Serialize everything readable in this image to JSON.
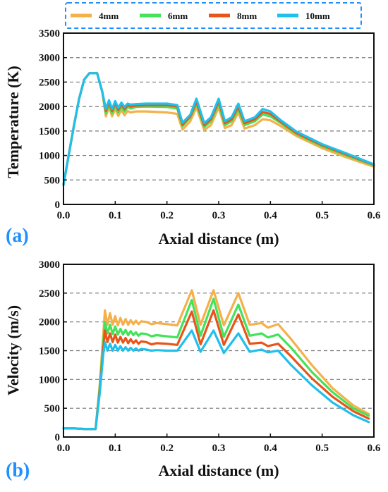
{
  "legend": {
    "placement": "top",
    "entries": [
      {
        "label": "4mm",
        "color": "#f5b04a"
      },
      {
        "label": "6mm",
        "color": "#44e25a"
      },
      {
        "label": "8mm",
        "color": "#e8541a"
      },
      {
        "label": "10mm",
        "color": "#1ec0ec"
      }
    ]
  },
  "chart_data": [
    {
      "type": "line",
      "panel_label": "(a)",
      "panel_label_color": "#1e90ff",
      "xlabel": "Axial distance (m)",
      "ylabel": "Temperature  (K)",
      "xlim": [
        0.0,
        0.6
      ],
      "ylim": [
        0,
        3500
      ],
      "xticks": [
        "0.0",
        "0.1",
        "0.2",
        "0.3",
        "0.4",
        "0.5",
        "0.6"
      ],
      "yticks": [
        "0",
        "500",
        "1000",
        "1500",
        "2000",
        "2500",
        "3000",
        "3500"
      ],
      "grid": "horizontal dashed",
      "series": [
        {
          "name": "4mm",
          "x": [
            0,
            0.01,
            0.02,
            0.03,
            0.04,
            0.05,
            0.065,
            0.075,
            0.082,
            0.088,
            0.094,
            0.1,
            0.106,
            0.112,
            0.118,
            0.124,
            0.13,
            0.14,
            0.16,
            0.2,
            0.22,
            0.23,
            0.245,
            0.257,
            0.272,
            0.285,
            0.3,
            0.312,
            0.325,
            0.338,
            0.35,
            0.37,
            0.385,
            0.4,
            0.42,
            0.45,
            0.5,
            0.55,
            0.6
          ],
          "y": [
            400,
            1000,
            1600,
            2150,
            2550,
            2680,
            2680,
            2300,
            1800,
            1980,
            1800,
            1950,
            1810,
            1930,
            1820,
            1910,
            1880,
            1900,
            1900,
            1880,
            1850,
            1530,
            1700,
            1980,
            1520,
            1620,
            1980,
            1560,
            1620,
            1880,
            1550,
            1620,
            1740,
            1720,
            1600,
            1400,
            1150,
            950,
            770
          ]
        },
        {
          "name": "6mm",
          "x": [
            0,
            0.01,
            0.02,
            0.03,
            0.04,
            0.05,
            0.065,
            0.075,
            0.082,
            0.088,
            0.094,
            0.1,
            0.106,
            0.112,
            0.118,
            0.124,
            0.13,
            0.14,
            0.16,
            0.2,
            0.22,
            0.23,
            0.245,
            0.257,
            0.272,
            0.285,
            0.3,
            0.312,
            0.325,
            0.338,
            0.35,
            0.37,
            0.385,
            0.4,
            0.42,
            0.45,
            0.5,
            0.55,
            0.6
          ],
          "y": [
            400,
            1000,
            1600,
            2150,
            2550,
            2680,
            2680,
            2300,
            1860,
            2040,
            1860,
            2020,
            1880,
            2000,
            1900,
            1990,
            1960,
            1990,
            2000,
            1990,
            1960,
            1600,
            1780,
            2050,
            1580,
            1700,
            2060,
            1620,
            1700,
            1950,
            1620,
            1700,
            1840,
            1800,
            1660,
            1440,
            1190,
            990,
            800
          ]
        },
        {
          "name": "8mm",
          "x": [
            0,
            0.01,
            0.02,
            0.03,
            0.04,
            0.05,
            0.065,
            0.075,
            0.082,
            0.088,
            0.094,
            0.1,
            0.106,
            0.112,
            0.118,
            0.124,
            0.13,
            0.14,
            0.16,
            0.2,
            0.22,
            0.23,
            0.245,
            0.257,
            0.272,
            0.285,
            0.3,
            0.312,
            0.325,
            0.338,
            0.35,
            0.37,
            0.385,
            0.4,
            0.42,
            0.45,
            0.5,
            0.55,
            0.6
          ],
          "y": [
            400,
            1000,
            1600,
            2150,
            2550,
            2680,
            2680,
            2300,
            1910,
            2090,
            1910,
            2070,
            1930,
            2050,
            1950,
            2030,
            2000,
            2020,
            2030,
            2030,
            2000,
            1630,
            1800,
            2100,
            1620,
            1740,
            2110,
            1660,
            1740,
            2000,
            1660,
            1740,
            1890,
            1850,
            1690,
            1460,
            1210,
            1010,
            810
          ]
        },
        {
          "name": "10mm",
          "x": [
            0,
            0.01,
            0.02,
            0.03,
            0.04,
            0.05,
            0.065,
            0.075,
            0.082,
            0.088,
            0.094,
            0.1,
            0.106,
            0.112,
            0.118,
            0.124,
            0.13,
            0.14,
            0.16,
            0.2,
            0.22,
            0.23,
            0.245,
            0.257,
            0.272,
            0.285,
            0.3,
            0.312,
            0.325,
            0.338,
            0.35,
            0.37,
            0.385,
            0.4,
            0.42,
            0.45,
            0.5,
            0.55,
            0.6
          ],
          "y": [
            400,
            1000,
            1600,
            2150,
            2550,
            2680,
            2680,
            2300,
            1950,
            2130,
            1950,
            2110,
            1970,
            2080,
            1990,
            2060,
            2040,
            2050,
            2060,
            2060,
            2030,
            1670,
            1830,
            2160,
            1660,
            1780,
            2160,
            1700,
            1780,
            2060,
            1700,
            1780,
            1950,
            1900,
            1720,
            1490,
            1230,
            1030,
            820
          ]
        }
      ]
    },
    {
      "type": "line",
      "panel_label": "(b)",
      "panel_label_color": "#1e90ff",
      "xlabel": "Axial distance (m)",
      "ylabel": "Velocity  (m/s)",
      "xlim": [
        0.0,
        0.6
      ],
      "ylim": [
        0,
        3000
      ],
      "xticks": [
        "0.0",
        "0.1",
        "0.2",
        "0.3",
        "0.4",
        "0.5",
        "0.6"
      ],
      "yticks": [
        "0",
        "500",
        "1000",
        "1500",
        "2000",
        "2500",
        "3000"
      ],
      "grid": "horizontal dashed",
      "series": [
        {
          "name": "4mm",
          "x": [
            0,
            0.01,
            0.02,
            0.03,
            0.04,
            0.05,
            0.062,
            0.07,
            0.077,
            0.08,
            0.085,
            0.09,
            0.095,
            0.1,
            0.105,
            0.11,
            0.115,
            0.12,
            0.125,
            0.13,
            0.135,
            0.14,
            0.145,
            0.15,
            0.16,
            0.17,
            0.18,
            0.2,
            0.22,
            0.248,
            0.265,
            0.29,
            0.31,
            0.338,
            0.36,
            0.383,
            0.395,
            0.415,
            0.44,
            0.48,
            0.52,
            0.56,
            0.59
          ],
          "y": [
            150,
            150,
            150,
            145,
            140,
            140,
            140,
            900,
            1800,
            2200,
            1950,
            2150,
            1950,
            2100,
            1940,
            2070,
            1950,
            2050,
            1950,
            2030,
            1960,
            2020,
            1960,
            2010,
            2000,
            1960,
            1980,
            1960,
            1940,
            2550,
            1950,
            2550,
            1940,
            2500,
            1950,
            1980,
            1900,
            1960,
            1700,
            1250,
            850,
            550,
            400
          ]
        },
        {
          "name": "6mm",
          "x": [
            0,
            0.01,
            0.02,
            0.03,
            0.04,
            0.05,
            0.062,
            0.07,
            0.077,
            0.08,
            0.085,
            0.09,
            0.095,
            0.1,
            0.105,
            0.11,
            0.115,
            0.12,
            0.125,
            0.13,
            0.135,
            0.14,
            0.145,
            0.15,
            0.16,
            0.17,
            0.18,
            0.2,
            0.22,
            0.248,
            0.265,
            0.29,
            0.31,
            0.338,
            0.36,
            0.383,
            0.395,
            0.415,
            0.44,
            0.48,
            0.52,
            0.56,
            0.59
          ],
          "y": [
            150,
            150,
            150,
            145,
            140,
            140,
            140,
            850,
            1650,
            2000,
            1800,
            1950,
            1790,
            1920,
            1780,
            1880,
            1780,
            1860,
            1770,
            1840,
            1770,
            1820,
            1760,
            1800,
            1790,
            1750,
            1770,
            1750,
            1730,
            2380,
            1760,
            2400,
            1740,
            2300,
            1760,
            1800,
            1730,
            1780,
            1550,
            1130,
            780,
            500,
            370
          ]
        },
        {
          "name": "8mm",
          "x": [
            0,
            0.01,
            0.02,
            0.03,
            0.04,
            0.05,
            0.062,
            0.07,
            0.077,
            0.08,
            0.085,
            0.09,
            0.095,
            0.1,
            0.105,
            0.11,
            0.115,
            0.12,
            0.125,
            0.13,
            0.135,
            0.14,
            0.145,
            0.15,
            0.16,
            0.17,
            0.18,
            0.2,
            0.22,
            0.248,
            0.265,
            0.29,
            0.31,
            0.338,
            0.36,
            0.383,
            0.395,
            0.415,
            0.44,
            0.48,
            0.52,
            0.56,
            0.59
          ],
          "y": [
            150,
            150,
            150,
            145,
            140,
            140,
            140,
            800,
            1550,
            1850,
            1650,
            1800,
            1650,
            1780,
            1640,
            1740,
            1640,
            1720,
            1630,
            1700,
            1630,
            1680,
            1620,
            1660,
            1650,
            1610,
            1630,
            1620,
            1600,
            2180,
            1610,
            2200,
            1600,
            2130,
            1620,
            1640,
            1580,
            1620,
            1400,
            1020,
            700,
            450,
            320
          ]
        },
        {
          "name": "10mm",
          "x": [
            0,
            0.01,
            0.02,
            0.03,
            0.04,
            0.05,
            0.062,
            0.07,
            0.077,
            0.08,
            0.085,
            0.09,
            0.095,
            0.1,
            0.105,
            0.11,
            0.115,
            0.12,
            0.125,
            0.13,
            0.135,
            0.14,
            0.145,
            0.15,
            0.16,
            0.17,
            0.18,
            0.2,
            0.22,
            0.248,
            0.265,
            0.29,
            0.31,
            0.338,
            0.36,
            0.383,
            0.395,
            0.415,
            0.44,
            0.48,
            0.52,
            0.56,
            0.59
          ],
          "y": [
            150,
            150,
            150,
            145,
            140,
            140,
            140,
            750,
            1450,
            1650,
            1500,
            1620,
            1500,
            1600,
            1500,
            1580,
            1500,
            1560,
            1500,
            1550,
            1500,
            1540,
            1500,
            1530,
            1520,
            1500,
            1510,
            1500,
            1500,
            1850,
            1480,
            1850,
            1460,
            1800,
            1480,
            1520,
            1470,
            1500,
            1250,
            900,
            600,
            380,
            260
          ]
        }
      ]
    }
  ]
}
